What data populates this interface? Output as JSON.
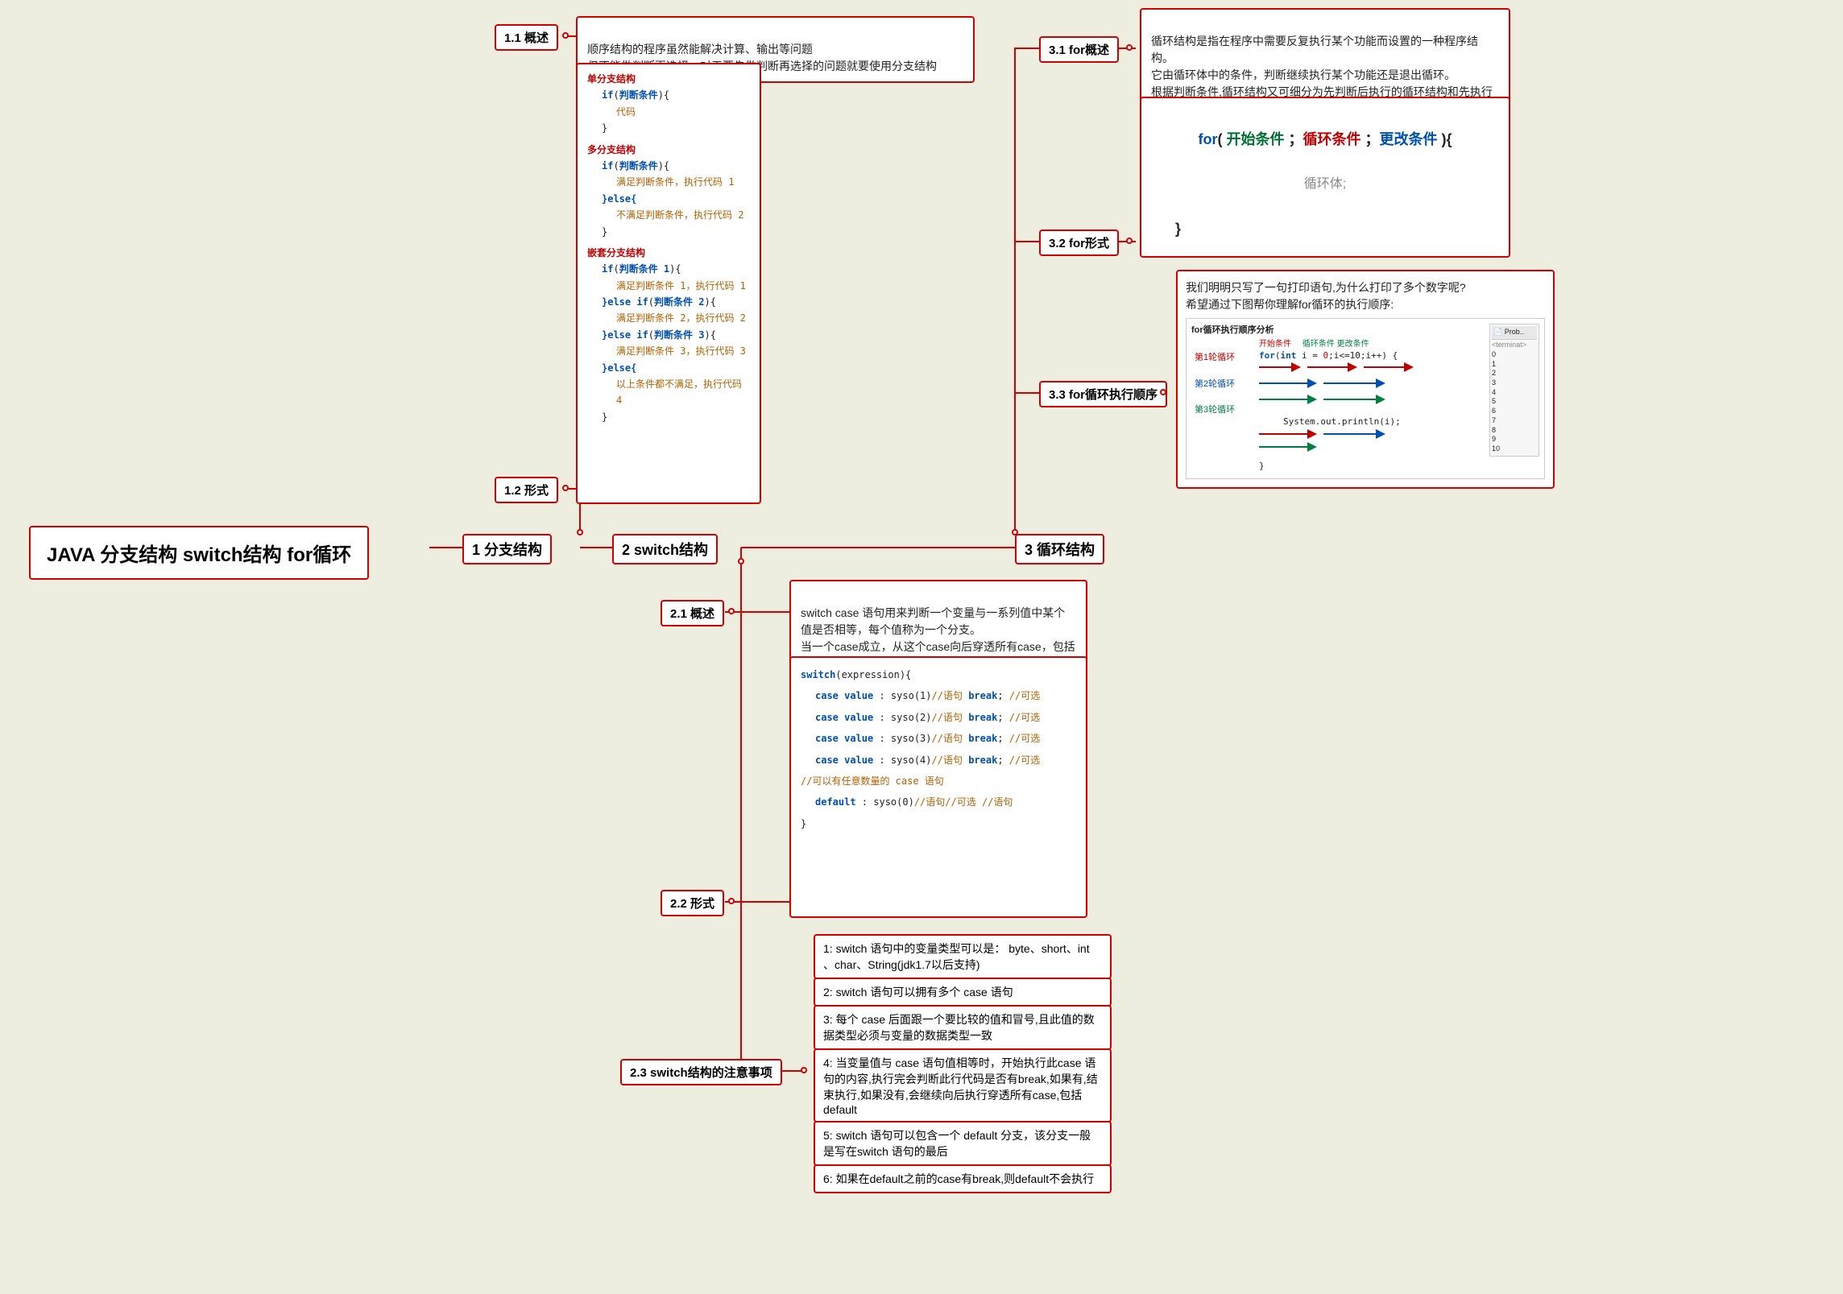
{
  "root": {
    "label": "JAVA 分支结构 switch结构 for循环"
  },
  "branch1": {
    "label": "1 分支结构",
    "sub1": {
      "label": "1.1 概述",
      "text": "顺序结构的程序虽然能解决计算、输出等问题\n但不能做判断再选择。对于要先做判断再选择的问题就要使用分支结构"
    },
    "sub2": {
      "label": "1.2 形式",
      "code": {
        "h1": "单分支结构",
        "h1_l1": "if(判断条件){",
        "h1_l2": "代码",
        "h1_l3": "}",
        "h2": "多分支结构",
        "h2_l1": "if(判断条件){",
        "h2_l2": "满足判断条件，执行代码 1",
        "h2_l3": "}else{",
        "h2_l4": "不满足判断条件，执行代码 2",
        "h2_l5": "}",
        "h3": "嵌套分支结构",
        "h3_l1": "if(判断条件 1){",
        "h3_l2": "满足判断条件 1，执行代码 1",
        "h3_l3": "}else if(判断条件 2){",
        "h3_l4": "满足判断条件 2，执行代码 2",
        "h3_l5": "}else if(判断条件 3){",
        "h3_l6": "满足判断条件 3，执行代码 3",
        "h3_l7": "}else{",
        "h3_l8": "以上条件都不满足，执行代码 4",
        "h3_l9": "}"
      }
    }
  },
  "branch2": {
    "label": "2 switch结构",
    "sub1": {
      "label": "2.1 概述",
      "text": "switch case 语句用来判断一个变量与一系列值中某个值是否相等，每个值称为一个分支。\n当一个case成立，从这个case向后穿透所有case，包括default，直到程序结束或者遇到break程序才结束"
    },
    "sub2": {
      "label": "2.2 形式",
      "code": {
        "l1": "switch(expression){",
        "l2": "case value : syso(1)//语句 break; //可选",
        "l3": "case value : syso(2)//语句 break; //可选",
        "l4": "case value : syso(3)//语句 break; //可选",
        "l5": "case value : syso(4)//语句 break; //可选",
        "l6": "//可以有任意数量的 case 语句",
        "l7": "default : syso(0)//语句//可选 //语句",
        "l8": "}"
      }
    },
    "sub3": {
      "label": "2.3 switch结构的注意事项",
      "notes": [
        "1: switch 语句中的变量类型可以是： byte、short、int 、char、String(jdk1.7以后支持)",
        "2: switch 语句可以拥有多个 case 语句",
        "3: 每个 case 后面跟一个要比较的值和冒号,且此值的数据类型必须与变量的数据类型一致",
        "4: 当变量值与 case 语句值相等时，开始执行此case 语句的内容,执行完会判断此行代码是否有break,如果有,结束执行,如果没有,会继续向后执行穿透所有case,包括default",
        "5: switch 语句可以包含一个 default 分支，该分支一般是写在switch 语句的最后",
        "6: 如果在default之前的case有break,则default不会执行"
      ]
    }
  },
  "branch3": {
    "label": "3 循环结构",
    "sub1": {
      "label": "3.1 for概述",
      "text": "循环结构是指在程序中需要反复执行某个功能而设置的一种程序结构。\n它由循环体中的条件，判断继续执行某个功能还是退出循环。\n根据判断条件,循环结构又可细分为先判断后执行的循环结构和先执行后判断的循环结构。"
    },
    "sub2": {
      "label": "3.2 for形式",
      "code": {
        "l1": "for( 开始条件 ；循环条件 ；更改条件 ){",
        "l2": "循环体;",
        "l3": "}"
      }
    },
    "sub3": {
      "label": "3.3 for循环执行顺序",
      "text": "我们明明只写了一句打印语句,为什么打印了多个数字呢?\n希望通过下图帮你理解for循环的执行顺序:",
      "diagram": {
        "title": "for循环执行顺序分析",
        "row1": "第1轮循环",
        "row2": "第2轮循环",
        "row3": "第3轮循环",
        "lbl_start": "开始条件",
        "lbl_loop": "循环条件 更改条件",
        "code1": "for(int i = 0;i<=10;i++) {",
        "code2": "System.out.println(i);",
        "code3": "}",
        "out_title": "Prob..",
        "out_sub": "<terminat>",
        "out_vals": [
          "0",
          "1",
          "2",
          "3",
          "4",
          "5",
          "6",
          "7",
          "8",
          "9",
          "10"
        ]
      }
    }
  },
  "colors": {
    "border": "#d40000",
    "bg": "#edeedf",
    "boxbg": "#ffffff",
    "kw_red": "#c00000",
    "kw_blue": "#0050b0",
    "kw_green": "#007030",
    "kw_orange": "#b06000"
  }
}
